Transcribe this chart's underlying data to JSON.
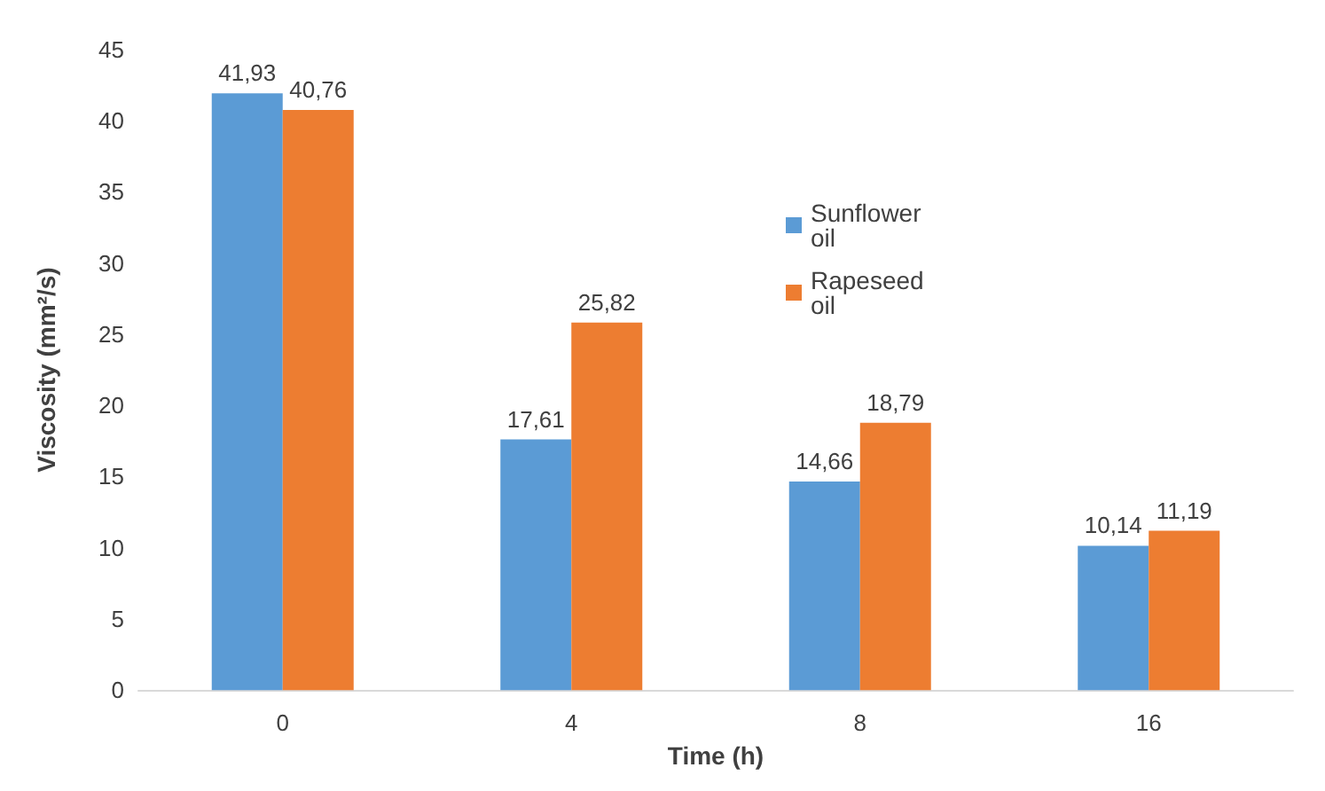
{
  "chart_data": {
    "type": "bar",
    "xlabel": "Time (h)",
    "ylabel": "Viscosity (mm²/s)",
    "categories": [
      "0",
      "4",
      "8",
      "16"
    ],
    "series": [
      {
        "name": "Sunflower oil",
        "color": "#5b9bd5",
        "values": [
          41.93,
          17.61,
          14.66,
          10.14
        ],
        "value_labels": [
          "41,93",
          "17,61",
          "14,66",
          "10,14"
        ]
      },
      {
        "name": "Rapeseed oil",
        "color": "#ed7d31",
        "values": [
          40.76,
          25.82,
          18.79,
          11.19
        ],
        "value_labels": [
          "40,76",
          "25,82",
          "18,79",
          "11,19"
        ]
      }
    ],
    "ylim": [
      0,
      45
    ],
    "yticks": [
      0,
      5,
      10,
      15,
      20,
      25,
      30,
      35,
      40,
      45
    ],
    "grid": false,
    "legend": "top right"
  }
}
